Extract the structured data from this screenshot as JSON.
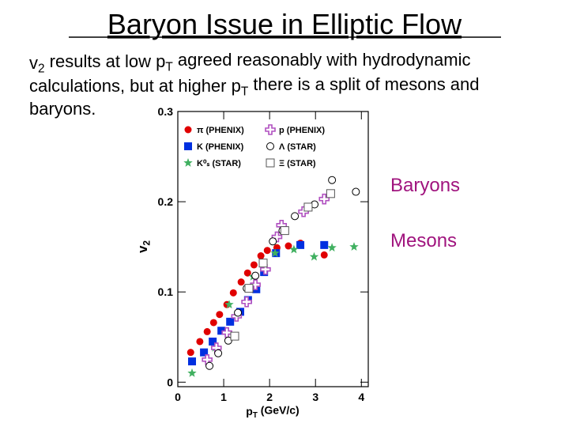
{
  "title": "Baryon Issue in Elliptic Flow",
  "body_lines": [
    [
      "v",
      "2",
      " results at low p",
      "T",
      " agreed reasonably with hydrodynamic"
    ],
    [
      "calculations, but at higher p",
      "T",
      " there is a split of mesons and"
    ],
    [
      "baryons."
    ]
  ],
  "chart_data": {
    "type": "scatter",
    "x_label": [
      "p",
      "T",
      " (GeV/c)"
    ],
    "y_label": [
      "v",
      "2"
    ],
    "xlim": [
      0,
      4.15
    ],
    "ylim": [
      -0.005,
      0.3
    ],
    "xticks": [
      0,
      1,
      2,
      3,
      4
    ],
    "yticks": [
      0,
      0.1,
      0.2,
      0.3
    ],
    "annotations": [
      "Baryons",
      "Mesons"
    ],
    "annotation_color": "#a0147e",
    "series": [
      {
        "name": "π (PHENIX)",
        "color": "#e00000",
        "marker": "circle",
        "x": [
          0.28,
          0.48,
          0.64,
          0.78,
          0.91,
          1.07,
          1.21,
          1.38,
          1.52,
          1.66,
          1.81,
          1.95,
          2.16,
          2.41,
          2.67,
          3.19
        ],
        "values": [
          0.033,
          0.045,
          0.056,
          0.066,
          0.075,
          0.086,
          0.099,
          0.111,
          0.121,
          0.13,
          0.14,
          0.146,
          0.149,
          0.151,
          0.154,
          0.141
        ]
      },
      {
        "name": "K (PHENIX)",
        "color": "#0030e0",
        "marker": "square",
        "x": [
          0.31,
          0.57,
          0.76,
          0.95,
          1.14,
          1.36,
          1.53,
          1.71,
          1.88,
          2.14,
          2.67,
          3.19
        ],
        "values": [
          0.023,
          0.033,
          0.045,
          0.057,
          0.067,
          0.078,
          0.091,
          0.103,
          0.122,
          0.143,
          0.152,
          0.152
        ]
      },
      {
        "name": "K⁰ₛ (STAR)",
        "color": "#40b060",
        "marker": "star",
        "x": [
          0.31,
          0.81,
          1.12,
          1.64,
          2.12,
          2.53,
          2.97,
          3.36,
          3.84
        ],
        "values": [
          0.01,
          0.038,
          0.086,
          0.117,
          0.143,
          0.147,
          0.139,
          0.149,
          0.15
        ]
      },
      {
        "name": "p (PHENIX)",
        "color": "#b050c0",
        "marker": "cross",
        "x": [
          0.64,
          0.84,
          1.07,
          1.28,
          1.5,
          1.69,
          1.91,
          2.16,
          2.26,
          2.74,
          3.19
        ],
        "values": [
          0.025,
          0.038,
          0.055,
          0.073,
          0.089,
          0.108,
          0.125,
          0.161,
          0.174,
          0.189,
          0.203
        ]
      },
      {
        "name": "Λ (STAR)",
        "color": "#000000",
        "marker": "open-circle",
        "x": [
          0.69,
          0.88,
          1.1,
          1.31,
          1.5,
          1.69,
          2.07,
          2.28,
          2.55,
          2.98,
          3.36,
          3.88
        ],
        "values": [
          0.018,
          0.032,
          0.046,
          0.077,
          0.104,
          0.118,
          0.156,
          0.168,
          0.184,
          0.197,
          0.224,
          0.211
        ]
      },
      {
        "name": "Ξ (STAR)",
        "color": "#555555",
        "marker": "open-square",
        "x": [
          1.24,
          1.55,
          1.86,
          2.33,
          2.84,
          3.33
        ],
        "values": [
          0.051,
          0.104,
          0.132,
          0.168,
          0.194,
          0.209
        ]
      }
    ]
  }
}
